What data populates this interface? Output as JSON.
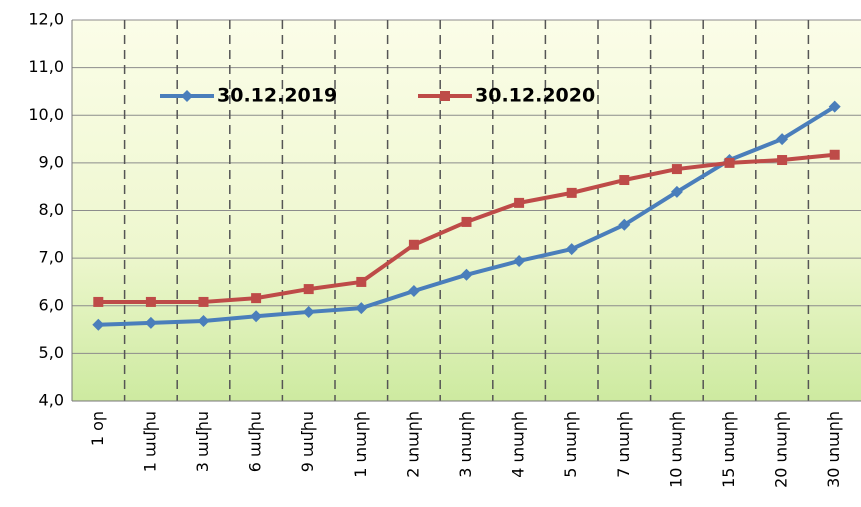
{
  "chart_data": {
    "type": "line",
    "categories": [
      "1 օր",
      "1 ամիս",
      "3 ամիս",
      "6 ամիս",
      "9 ամիս",
      "1 տարի",
      "2 տարի",
      "3 տարի",
      "4 տարի",
      "5 տարի",
      "7 տարի",
      "10 տարի",
      "15 տարի",
      "20 տարի",
      "30 տարի"
    ],
    "series": [
      {
        "name": "30.12.2019",
        "color": "#4a7ebb",
        "marker": "diamond",
        "values": [
          5.6,
          5.64,
          5.68,
          5.78,
          5.87,
          5.95,
          6.31,
          6.65,
          6.94,
          7.19,
          7.7,
          8.39,
          9.06,
          9.5,
          10.18
        ]
      },
      {
        "name": "30.12.2020",
        "color": "#be4b48",
        "marker": "square",
        "values": [
          6.08,
          6.08,
          6.08,
          6.16,
          6.35,
          6.5,
          7.28,
          7.76,
          8.16,
          8.37,
          8.64,
          8.87,
          9.0,
          9.06,
          9.17
        ]
      }
    ],
    "ylim": [
      4,
      12
    ],
    "yticks": [
      {
        "value": 4,
        "label": "4,0"
      },
      {
        "value": 5,
        "label": "5,0"
      },
      {
        "value": 6,
        "label": "6,0"
      },
      {
        "value": 7,
        "label": "7,0"
      },
      {
        "value": 8,
        "label": "8,0"
      },
      {
        "value": 9,
        "label": "9,0"
      },
      {
        "value": 10,
        "label": "10,0"
      },
      {
        "value": 11,
        "label": "11,0"
      },
      {
        "value": 12,
        "label": "12,0"
      }
    ],
    "grid": true
  }
}
